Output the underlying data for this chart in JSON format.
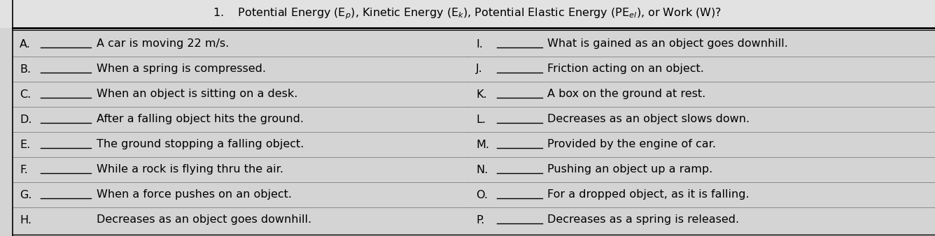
{
  "title": "1.    Potential Energy (E$_p$), Kinetic Energy (E$_k$), Potential Elastic Energy (PE$_{el}$), or Work (W)?",
  "bg_color": "#d9d9d9",
  "left_items": [
    {
      "label": "A.",
      "blank": true,
      "text": "A car is moving 22 m/s."
    },
    {
      "label": "B.",
      "blank": true,
      "text": "When a spring is compressed."
    },
    {
      "label": "C.",
      "blank": true,
      "text": "When an object is sitting on a desk."
    },
    {
      "label": "D.",
      "blank": true,
      "text": "After a falling object hits the ground."
    },
    {
      "label": "E.",
      "blank": true,
      "text": "The ground stopping a falling object."
    },
    {
      "label": "F.",
      "blank": true,
      "text": "While a rock is flying thru the air."
    },
    {
      "label": "G.",
      "blank": true,
      "text": "When a force pushes on an object."
    },
    {
      "label": "H.",
      "blank": false,
      "text": "Decreases as an object goes downhill."
    }
  ],
  "right_items": [
    {
      "label": "I.",
      "blank": true,
      "text": "What is gained as an object goes downhill."
    },
    {
      "label": "J.",
      "blank": true,
      "text": "Friction acting on an object."
    },
    {
      "label": "K.",
      "blank": true,
      "text": "A box on the ground at rest."
    },
    {
      "label": "L.",
      "blank": true,
      "text": "Decreases as an object slows down."
    },
    {
      "label": "M.",
      "blank": true,
      "text": "Provided by the engine of car."
    },
    {
      "label": "N.",
      "blank": true,
      "text": "Pushing an object up a ramp."
    },
    {
      "label": "O.",
      "blank": true,
      "text": "For a dropped object, as it is falling."
    },
    {
      "label": "P.",
      "blank": true,
      "text": "Decreases as a spring is released."
    }
  ],
  "font_size": 11.5,
  "title_font_size": 11.5
}
